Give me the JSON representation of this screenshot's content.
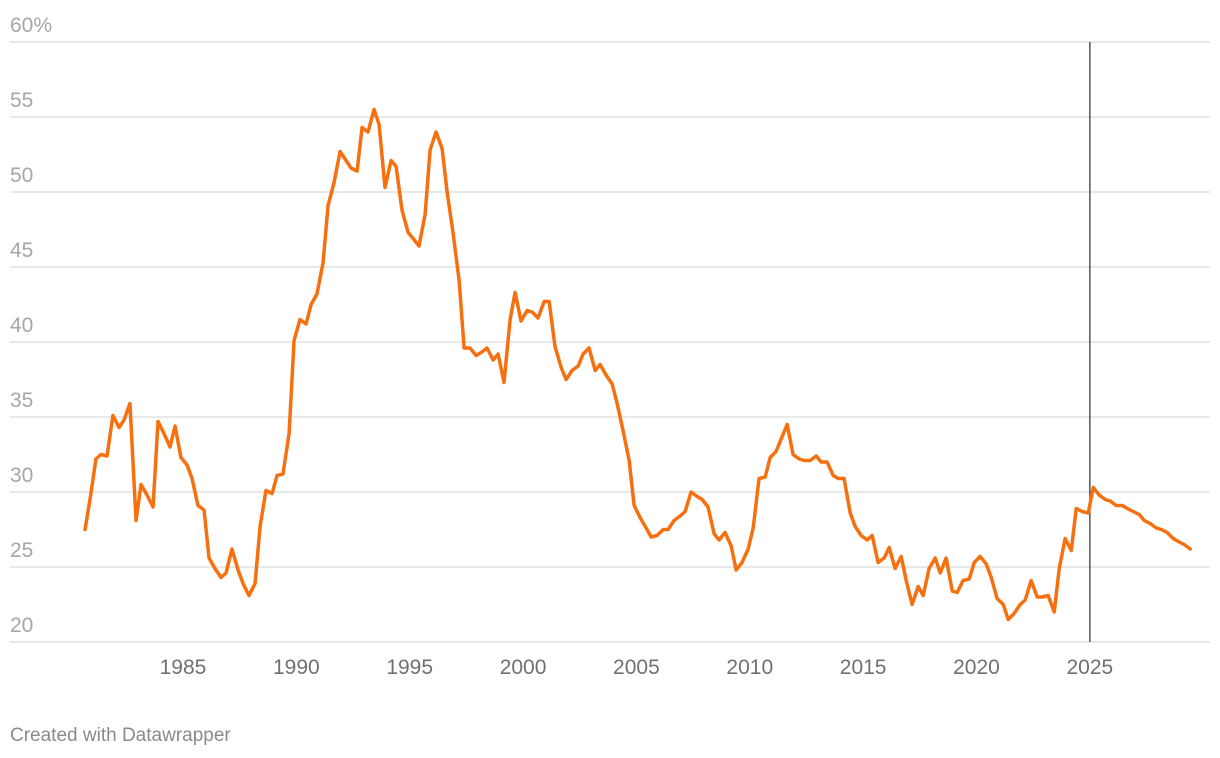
{
  "chart_data": {
    "type": "line",
    "x": [
      1980.68,
      1980.93,
      1981.16,
      1981.38,
      1981.65,
      1981.91,
      1982.18,
      1982.4,
      1982.66,
      1982.93,
      1983.15,
      1983.41,
      1983.68,
      1983.9,
      1984.16,
      1984.43,
      1984.65,
      1984.91,
      1985.18,
      1985.4,
      1985.66,
      1985.93,
      1986.15,
      1986.41,
      1986.68,
      1986.9,
      1987.16,
      1987.43,
      1987.65,
      1987.91,
      1988.18,
      1988.4,
      1988.66,
      1988.93,
      1989.15,
      1989.41,
      1989.68,
      1989.9,
      1990.16,
      1990.43,
      1990.65,
      1990.91,
      1991.18,
      1991.4,
      1991.66,
      1991.93,
      1992.15,
      1992.41,
      1992.68,
      1992.9,
      1993.16,
      1993.43,
      1993.65,
      1993.91,
      1994.18,
      1994.4,
      1994.66,
      1994.93,
      1995.15,
      1995.41,
      1995.68,
      1995.9,
      1996.16,
      1996.43,
      1996.65,
      1996.91,
      1997.18,
      1997.4,
      1997.66,
      1997.93,
      1998.15,
      1998.41,
      1998.68,
      1998.9,
      1999.16,
      1999.43,
      1999.65,
      1999.91,
      2000.18,
      2000.4,
      2000.66,
      2000.93,
      2001.15,
      2001.41,
      2001.68,
      2001.9,
      2002.16,
      2002.43,
      2002.65,
      2002.91,
      2003.18,
      2003.4,
      2003.66,
      2003.93,
      2004.15,
      2004.41,
      2004.68,
      2004.9,
      2005.16,
      2005.43,
      2005.65,
      2005.91,
      2006.18,
      2006.4,
      2006.66,
      2006.93,
      2007.15,
      2007.41,
      2007.68,
      2007.9,
      2008.16,
      2008.43,
      2008.65,
      2008.91,
      2009.18,
      2009.4,
      2009.66,
      2009.93,
      2010.15,
      2010.41,
      2010.68,
      2010.9,
      2011.16,
      2011.43,
      2011.65,
      2011.91,
      2012.18,
      2012.4,
      2012.66,
      2012.93,
      2013.15,
      2013.41,
      2013.68,
      2013.9,
      2014.16,
      2014.43,
      2014.65,
      2014.91,
      2015.18,
      2015.4,
      2015.66,
      2015.93,
      2016.15,
      2016.41,
      2016.68,
      2016.9,
      2017.16,
      2017.43,
      2017.65,
      2017.91,
      2018.18,
      2018.4,
      2018.66,
      2018.93,
      2019.15,
      2019.41,
      2019.68,
      2019.9,
      2020.16,
      2020.43,
      2020.65,
      2020.91,
      2021.18,
      2021.4,
      2021.66,
      2021.93,
      2022.15,
      2022.41,
      2022.68,
      2022.9,
      2023.16,
      2023.43,
      2023.65,
      2023.91,
      2024.18,
      2024.4,
      2024.66,
      2024.93,
      2025.15,
      2025.41,
      2025.68,
      2025.9,
      2026.16,
      2026.43,
      2026.65,
      2026.91,
      2027.18,
      2027.4,
      2027.66,
      2027.93,
      2028.15,
      2028.41,
      2028.68,
      2028.9,
      2029.16,
      2029.43
    ],
    "values": [
      27.5,
      29.8,
      32.2,
      32.5,
      32.4,
      35.1,
      34.3,
      34.8,
      35.9,
      28.1,
      30.5,
      29.8,
      29.0,
      34.7,
      33.9,
      33.0,
      34.4,
      32.3,
      31.8,
      30.9,
      29.1,
      28.8,
      25.6,
      24.9,
      24.3,
      24.6,
      26.2,
      24.8,
      23.9,
      23.1,
      23.9,
      27.7,
      30.1,
      29.9,
      31.1,
      31.2,
      33.9,
      40.1,
      41.5,
      41.2,
      42.5,
      43.2,
      45.3,
      49.1,
      50.6,
      52.7,
      52.2,
      51.6,
      51.4,
      54.3,
      54.0,
      55.5,
      54.5,
      50.3,
      52.1,
      51.7,
      48.8,
      47.3,
      46.9,
      46.4,
      48.5,
      52.8,
      54.0,
      52.9,
      50.0,
      47.3,
      44.1,
      39.6,
      39.6,
      39.1,
      39.3,
      39.6,
      38.8,
      39.2,
      37.3,
      41.5,
      43.3,
      41.4,
      42.1,
      42.0,
      41.6,
      42.7,
      42.7,
      39.7,
      38.3,
      37.5,
      38.1,
      38.4,
      39.2,
      39.6,
      38.1,
      38.5,
      37.8,
      37.2,
      35.9,
      34.1,
      32.1,
      29.1,
      28.3,
      27.6,
      27.0,
      27.1,
      27.5,
      27.5,
      28.1,
      28.4,
      28.7,
      30.0,
      29.7,
      29.5,
      29.0,
      27.2,
      26.8,
      27.3,
      26.4,
      24.8,
      25.3,
      26.2,
      27.6,
      30.9,
      31.0,
      32.3,
      32.7,
      33.7,
      34.5,
      32.5,
      32.2,
      32.1,
      32.1,
      32.4,
      32.0,
      32.0,
      31.1,
      30.9,
      30.9,
      28.6,
      27.7,
      27.1,
      26.8,
      27.1,
      25.3,
      25.6,
      26.3,
      24.9,
      25.7,
      24.1,
      22.5,
      23.7,
      23.1,
      24.9,
      25.6,
      24.6,
      25.6,
      23.4,
      23.3,
      24.1,
      24.2,
      25.3,
      25.7,
      25.2,
      24.3,
      22.9,
      22.5,
      21.5,
      21.9,
      22.5,
      22.8,
      24.1,
      23.0,
      23.0,
      23.1,
      22.0,
      24.9,
      26.9,
      26.1,
      28.9,
      28.7,
      28.6,
      30.3,
      29.8,
      29.5,
      29.4,
      29.1,
      29.1,
      28.9,
      28.7,
      28.5,
      28.1,
      27.9,
      27.6,
      27.5,
      27.3,
      26.9,
      26.7,
      26.5,
      26.2
    ],
    "color": "#f7700f",
    "xlim": [
      1977.37,
      2030.3
    ],
    "xticks": [
      1985,
      1990,
      1995,
      2000,
      2005,
      2010,
      2015,
      2020,
      2025
    ],
    "ylim": [
      20,
      60
    ],
    "yticks": [
      20,
      25,
      30,
      35,
      40,
      45,
      50,
      55,
      {
        "value": 60,
        "label": "60%"
      }
    ],
    "grid": true,
    "reference_x": 2025,
    "reference_color": "#555555",
    "source": "Created with Datawrapper"
  }
}
